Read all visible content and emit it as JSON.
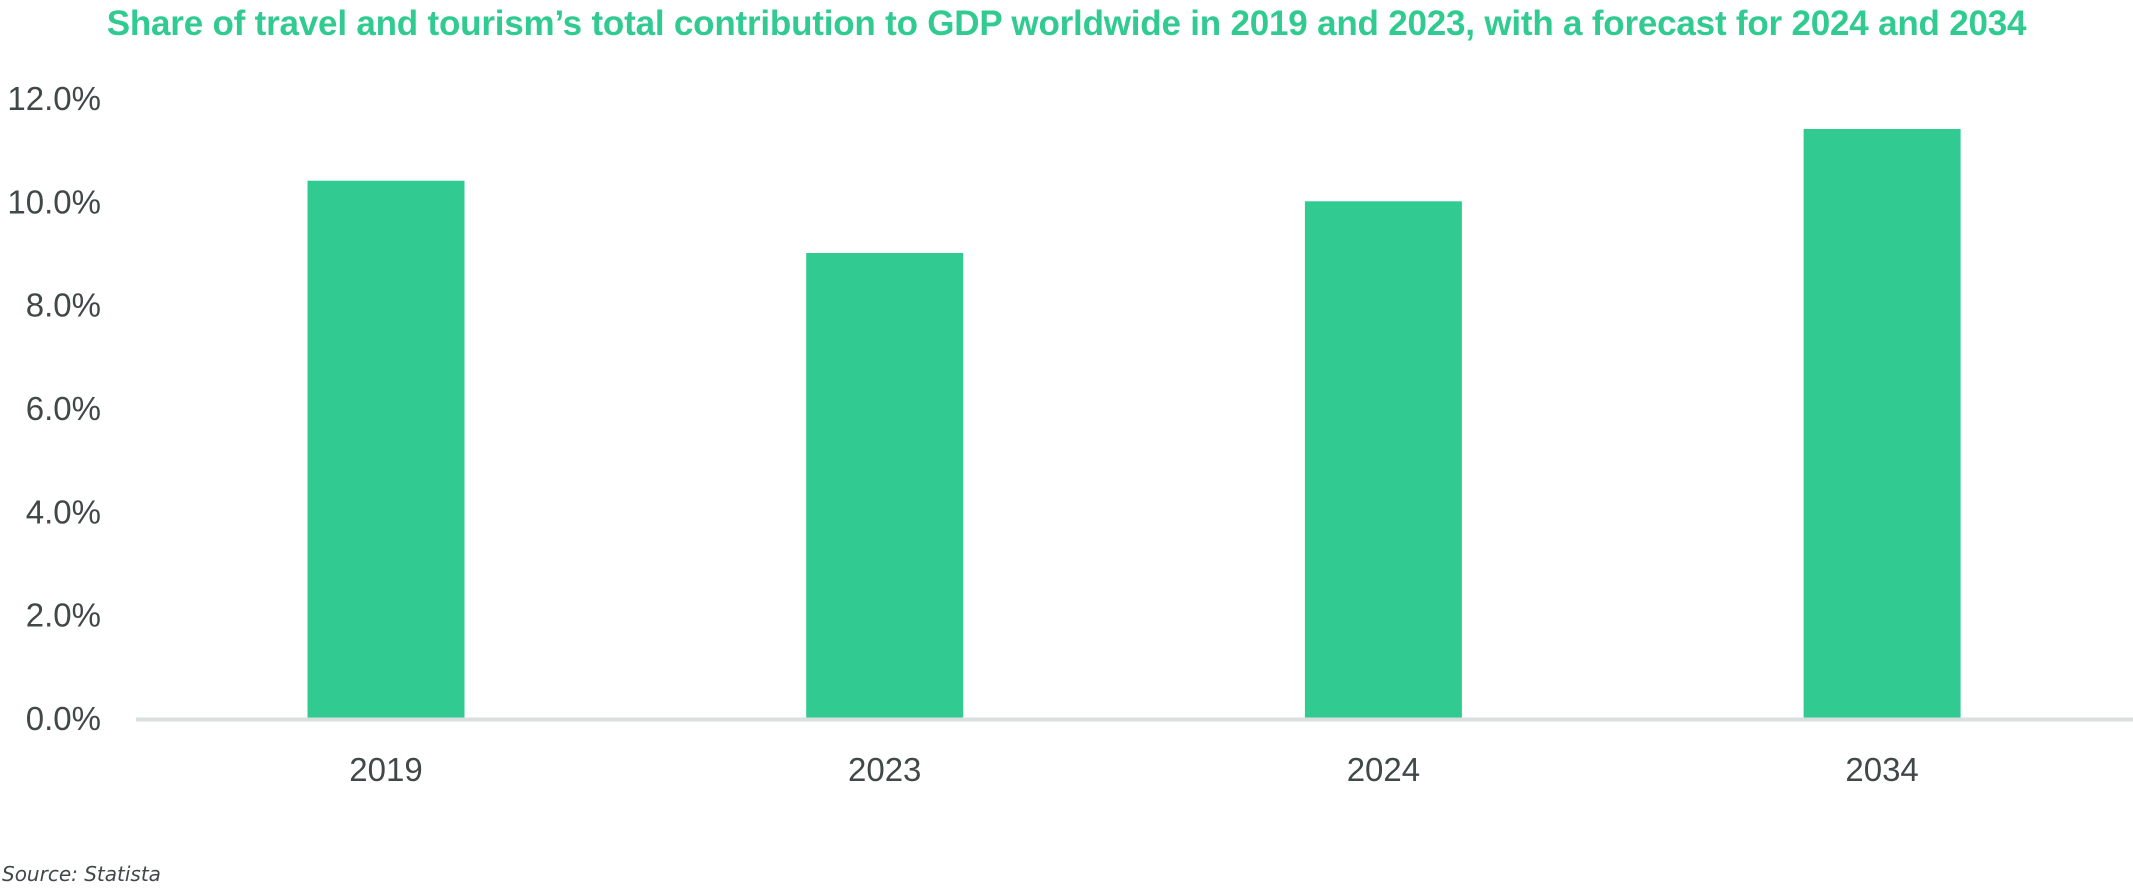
{
  "title": "Share of travel and tourism’s total contribution to GDP worldwide in 2019 and 2023, with a forecast for 2024 and 2034",
  "source": "Source: Statista",
  "colors": {
    "bar": "#31cb91",
    "title": "#31cb91",
    "axis_line": "#d9dfdf",
    "tick_text": "#404848",
    "source_text": "#404848"
  },
  "chart_data": {
    "type": "bar",
    "categories": [
      "2019",
      "2023",
      "2024",
      "2034"
    ],
    "values": [
      10.4,
      9.0,
      10.0,
      11.4
    ],
    "value_unit": "%",
    "ylim": [
      0,
      12
    ],
    "yticks": [
      0,
      2,
      4,
      6,
      8,
      10,
      12
    ],
    "ytick_labels": [
      "0.0%",
      "2.0%",
      "4.0%",
      "6.0%",
      "8.0%",
      "10.0%",
      "12.0%"
    ],
    "grid": false,
    "legend": "none",
    "xlabel": "",
    "ylabel": ""
  }
}
